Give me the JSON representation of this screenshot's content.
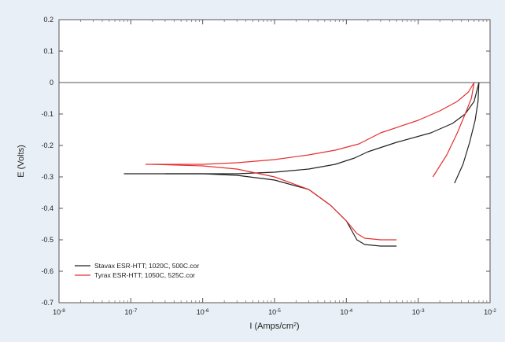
{
  "chart_data": {
    "type": "line",
    "title": "",
    "xlabel": "I (Amps/cm",
    "xlabel_sup": "2",
    "xlabel_close": ")",
    "ylabel": "E (Volts)",
    "xscale": "log",
    "xlim": [
      1e-08,
      0.01
    ],
    "ylim": [
      -0.7,
      0.2
    ],
    "x_ticks": [
      {
        "base": "10",
        "exp": "-8",
        "value": 1e-08
      },
      {
        "base": "10",
        "exp": "-7",
        "value": 1e-07
      },
      {
        "base": "10",
        "exp": "-6",
        "value": 1e-06
      },
      {
        "base": "10",
        "exp": "-5",
        "value": 1e-05
      },
      {
        "base": "10",
        "exp": "-4",
        "value": 0.0001
      },
      {
        "base": "10",
        "exp": "-3",
        "value": 0.001
      },
      {
        "base": "10",
        "exp": "-2",
        "value": 0.01
      }
    ],
    "y_ticks": [
      "0.2",
      "0.1",
      "0",
      "-0.1",
      "-0.2",
      "-0.3",
      "-0.4",
      "-0.5",
      "-0.6",
      "-0.7"
    ],
    "y_tick_values": [
      0.2,
      0.1,
      0,
      -0.1,
      -0.2,
      -0.3,
      -0.4,
      -0.5,
      -0.6,
      -0.7
    ],
    "grid": false,
    "reference_line_y": 0,
    "legend_position": "bottom-left",
    "series": [
      {
        "name": "Stavax ESR-HTT; 1020C, 500C.cor",
        "color": "#222222",
        "segments": [
          {
            "x": [
              8e-08,
              3e-07,
              1e-06,
              3e-06,
              1e-05,
              3e-05,
              7e-05,
              0.00013,
              0.0002,
              0.0005,
              0.0015,
              0.003,
              0.0045,
              0.006,
              0.007
            ],
            "y": [
              -0.29,
              -0.29,
              -0.29,
              -0.29,
              -0.285,
              -0.275,
              -0.26,
              -0.24,
              -0.22,
              -0.19,
              -0.16,
              -0.13,
              -0.1,
              -0.06,
              0.0
            ]
          },
          {
            "x": [
              3e-07,
              1e-06,
              3e-06,
              1e-05,
              3e-05,
              6e-05,
              0.0001,
              0.00014,
              0.00018,
              0.0003,
              0.0005
            ],
            "y": [
              -0.29,
              -0.29,
              -0.295,
              -0.31,
              -0.34,
              -0.39,
              -0.44,
              -0.5,
              -0.515,
              -0.52,
              -0.52
            ]
          },
          {
            "x": [
              0.007,
              0.0068,
              0.0062,
              0.0052,
              0.0042,
              0.0032
            ],
            "y": [
              0.0,
              -0.06,
              -0.12,
              -0.19,
              -0.26,
              -0.32
            ]
          }
        ]
      },
      {
        "name": "Tyrax ESR-HTT; 1050C, 525C.cor",
        "color": "#e53030",
        "segments": [
          {
            "x": [
              1.6e-07,
              5e-07,
              1e-06,
              3e-06,
              1e-05,
              3e-05,
              7e-05,
              0.00015,
              0.0003,
              0.001,
              0.002,
              0.0035,
              0.005,
              0.006
            ],
            "y": [
              -0.26,
              -0.26,
              -0.26,
              -0.255,
              -0.245,
              -0.23,
              -0.215,
              -0.195,
              -0.16,
              -0.12,
              -0.09,
              -0.06,
              -0.03,
              0.0
            ]
          },
          {
            "x": [
              2e-07,
              1e-06,
              3e-06,
              1e-05,
              3e-05,
              6e-05,
              0.0001,
              0.00014,
              0.00018,
              0.0003,
              0.0005
            ],
            "y": [
              -0.26,
              -0.265,
              -0.275,
              -0.3,
              -0.34,
              -0.39,
              -0.44,
              -0.48,
              -0.495,
              -0.5,
              -0.5
            ]
          },
          {
            "x": [
              0.006,
              0.0055,
              0.0045,
              0.0035,
              0.0025,
              0.0016
            ],
            "y": [
              0.0,
              -0.05,
              -0.1,
              -0.16,
              -0.23,
              -0.3
            ]
          }
        ]
      }
    ]
  }
}
